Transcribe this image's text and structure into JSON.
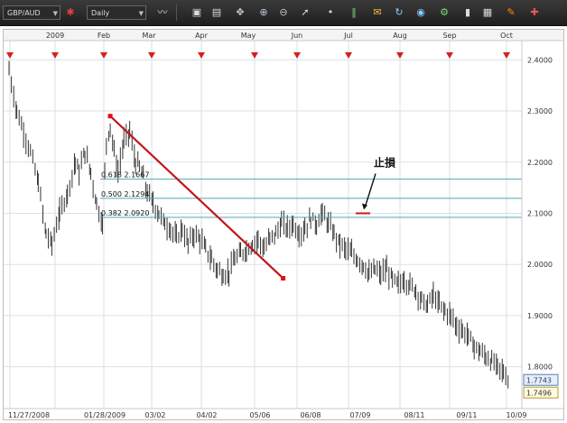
{
  "toolbar": {
    "symbol": "GBP/AUD",
    "timeframe": "Daily",
    "buttons": [
      {
        "icon": "symbol-settings-icon"
      },
      {
        "icon": "chart-type-icon"
      },
      {
        "icon": "indicator-icon"
      },
      {
        "icon": "study-icon"
      },
      {
        "icon": "crosshair-icon"
      },
      {
        "icon": "zoom-in-icon"
      },
      {
        "icon": "zoom-out-icon"
      },
      {
        "icon": "cursor-icon"
      },
      {
        "icon": "dot-icon"
      },
      {
        "icon": "bar-tool-icon"
      },
      {
        "icon": "comment-icon"
      },
      {
        "icon": "refresh-icon"
      },
      {
        "icon": "globe-icon"
      },
      {
        "icon": "chart-settings-icon"
      },
      {
        "icon": "fullscreen-icon"
      },
      {
        "icon": "layout-icon"
      },
      {
        "icon": "pencil-icon"
      },
      {
        "icon": "tools-icon"
      }
    ]
  },
  "chart_data": {
    "type": "bar",
    "symbol": "GBP/AUD",
    "ylim": [
      1.75,
      2.42
    ],
    "y_ticks": [
      "2.4000",
      "2.3000",
      "2.2000",
      "2.1000",
      "2.0000",
      "1.9000",
      "1.8000"
    ],
    "top_axis_labels": [
      "2009",
      "Feb",
      "Mar",
      "Apr",
      "May",
      "Jun",
      "Jul",
      "Aug",
      "Sep",
      "Oct"
    ],
    "bottom_axis_labels": [
      "11/27/2008",
      "01/28/2009",
      "03/02",
      "04/02",
      "05/06",
      "06/08",
      "07/09",
      "08/11",
      "09/11",
      "10/09"
    ],
    "price_labels": [
      {
        "label": "1.7743",
        "value": 1.7743
      },
      {
        "label": "1.7496",
        "value": 1.7496
      }
    ],
    "fib_levels": [
      {
        "ratio": "0.618",
        "value": 2.1667,
        "label": "0.618 2.1667"
      },
      {
        "ratio": "0.500",
        "value": 2.1294,
        "label": "0.500 2.1294"
      },
      {
        "ratio": "0.382",
        "value": 2.092,
        "label": "0.382 2.0920"
      }
    ],
    "trendline": {
      "start_value": 2.29,
      "start_label": "01/28/2009",
      "end_value": 1.973,
      "end_label": "05/06"
    },
    "stop_loss": {
      "label": "止損",
      "value": 2.1,
      "date": "07/09"
    },
    "path": [
      [
        0,
        2.38
      ],
      [
        8,
        2.3
      ],
      [
        15,
        2.26
      ],
      [
        22,
        2.22
      ],
      [
        30,
        2.16
      ],
      [
        38,
        2.06
      ],
      [
        44,
        2.04
      ],
      [
        52,
        2.1
      ],
      [
        60,
        2.14
      ],
      [
        68,
        2.2
      ],
      [
        72,
        2.18
      ],
      [
        78,
        2.22
      ],
      [
        84,
        2.18
      ],
      [
        90,
        2.12
      ],
      [
        96,
        2.08
      ],
      [
        100,
        2.24
      ],
      [
        104,
        2.27
      ],
      [
        108,
        2.22
      ],
      [
        112,
        2.18
      ],
      [
        118,
        2.24
      ],
      [
        124,
        2.26
      ],
      [
        130,
        2.2
      ],
      [
        134,
        2.19
      ],
      [
        138,
        2.17
      ],
      [
        142,
        2.14
      ],
      [
        148,
        2.12
      ],
      [
        154,
        2.1
      ],
      [
        160,
        2.08
      ],
      [
        166,
        2.07
      ],
      [
        172,
        2.05
      ],
      [
        178,
        2.07
      ],
      [
        184,
        2.04
      ],
      [
        190,
        2.06
      ],
      [
        196,
        2.05
      ],
      [
        202,
        2.03
      ],
      [
        208,
        2.01
      ],
      [
        214,
        1.99
      ],
      [
        220,
        1.98
      ],
      [
        226,
        1.985
      ],
      [
        232,
        2.01
      ],
      [
        238,
        2.02
      ],
      [
        244,
        2.03
      ],
      [
        250,
        2.04
      ],
      [
        256,
        2.05
      ],
      [
        262,
        2.03
      ],
      [
        268,
        2.05
      ],
      [
        274,
        2.06
      ],
      [
        280,
        2.08
      ],
      [
        286,
        2.07
      ],
      [
        292,
        2.08
      ],
      [
        298,
        2.06
      ],
      [
        304,
        2.07
      ],
      [
        310,
        2.09
      ],
      [
        316,
        2.08
      ],
      [
        322,
        2.1
      ],
      [
        328,
        2.08
      ],
      [
        334,
        2.06
      ],
      [
        340,
        2.04
      ],
      [
        346,
        2.03
      ],
      [
        352,
        2.02
      ],
      [
        358,
        2.01
      ],
      [
        364,
        2.0
      ],
      [
        370,
        1.98
      ],
      [
        376,
        1.99
      ],
      [
        382,
        1.98
      ],
      [
        388,
        1.99
      ],
      [
        394,
        1.97
      ],
      [
        400,
        1.96
      ],
      [
        406,
        1.97
      ],
      [
        412,
        1.96
      ],
      [
        418,
        1.95
      ],
      [
        424,
        1.93
      ],
      [
        430,
        1.92
      ],
      [
        436,
        1.94
      ],
      [
        442,
        1.92
      ],
      [
        448,
        1.91
      ],
      [
        454,
        1.9
      ],
      [
        460,
        1.88
      ],
      [
        466,
        1.87
      ],
      [
        472,
        1.86
      ],
      [
        478,
        1.84
      ],
      [
        484,
        1.83
      ],
      [
        490,
        1.82
      ],
      [
        496,
        1.81
      ],
      [
        502,
        1.8
      ],
      [
        508,
        1.79
      ],
      [
        514,
        1.77
      ]
    ]
  }
}
